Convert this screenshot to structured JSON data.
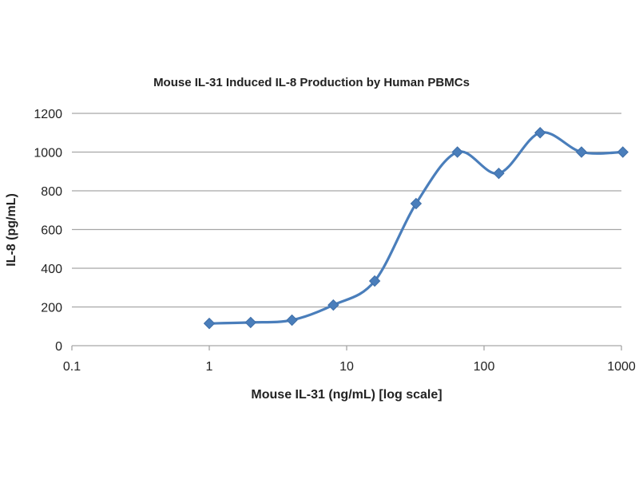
{
  "chart_data": {
    "type": "line",
    "title": "Mouse IL-31 Induced IL-8 Production by Human PBMCs",
    "xlabel": "Mouse IL-31 (ng/mL) [log scale]",
    "ylabel": "IL-8 (pg/mL)",
    "xscale": "log",
    "xlim": [
      0.1,
      1000
    ],
    "ylim": [
      0,
      1200
    ],
    "x_ticks": [
      0.1,
      1,
      10,
      100,
      1000
    ],
    "x_tick_labels": [
      "0.1",
      "1",
      "10",
      "100",
      "1000"
    ],
    "y_ticks": [
      0,
      200,
      400,
      600,
      800,
      1000,
      1200
    ],
    "y_tick_labels": [
      "0",
      "200",
      "400",
      "600",
      "800",
      "1000",
      "1200"
    ],
    "grid": "horizontal",
    "legend": "none",
    "series": [
      {
        "name": "IL-8",
        "color": "#4a7ebb",
        "marker": "diamond",
        "smooth": true,
        "x": [
          1,
          2,
          4,
          8,
          16,
          32,
          64,
          128,
          256,
          512,
          1024
        ],
        "y": [
          115,
          120,
          132,
          210,
          334,
          734,
          1000,
          890,
          1100,
          1000,
          1000
        ]
      }
    ]
  }
}
